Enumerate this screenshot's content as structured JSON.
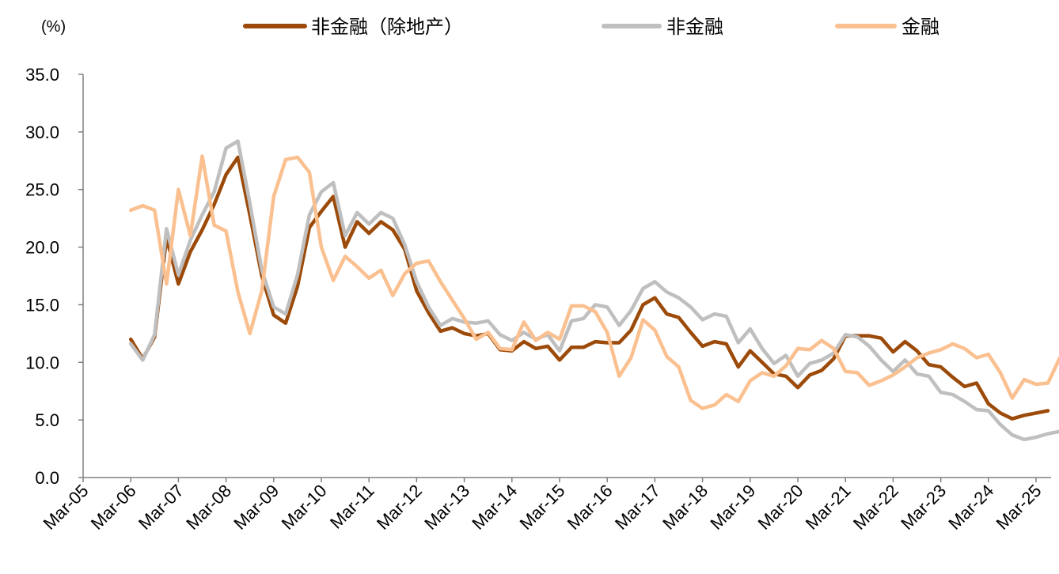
{
  "chart_data": {
    "type": "line",
    "unit_label": "(%)",
    "ylim": [
      0,
      35
    ],
    "y_ticks": [
      "0.0",
      "5.0",
      "10.0",
      "15.0",
      "20.0",
      "25.0",
      "30.0",
      "35.0"
    ],
    "x_tick_labels": [
      "Mar-05",
      "Mar-06",
      "Mar-07",
      "Mar-08",
      "Mar-09",
      "Mar-10",
      "Mar-11",
      "Mar-12",
      "Mar-13",
      "Mar-14",
      "Mar-15",
      "Mar-16",
      "Mar-17",
      "Mar-18",
      "Mar-19",
      "Mar-20",
      "Mar-21",
      "Mar-22",
      "Mar-23",
      "Mar-24",
      "Mar-25"
    ],
    "x_start": "2005Q1",
    "legend_position": "top",
    "series": [
      {
        "name": "非金融（除地产）",
        "color": "#9C4A09",
        "start": "2006Q1",
        "values": [
          12.0,
          10.3,
          12.2,
          20.8,
          16.8,
          19.6,
          21.5,
          23.7,
          26.3,
          27.8,
          22.8,
          17.5,
          14.1,
          13.4,
          16.6,
          21.7,
          23.1,
          24.4,
          20.0,
          22.2,
          21.2,
          22.2,
          21.5,
          19.8,
          16.2,
          14.3,
          12.7,
          13.0,
          12.5,
          12.3,
          12.5,
          11.1,
          11.0,
          11.8,
          11.2,
          11.4,
          10.2,
          11.3,
          11.3,
          11.8,
          11.7,
          11.7,
          12.8,
          15.0,
          15.6,
          14.2,
          13.9,
          12.6,
          11.4,
          11.8,
          11.6,
          9.6,
          11.0,
          10.0,
          9.0,
          8.8,
          7.8,
          8.9,
          9.3,
          10.3,
          12.3,
          12.3,
          12.3,
          12.1,
          10.9,
          11.8,
          11.0,
          9.8,
          9.6,
          8.7,
          7.9,
          8.2,
          6.4,
          5.6,
          5.1,
          5.4,
          5.6,
          5.8
        ]
      },
      {
        "name": "非金融",
        "color": "#BFBFBF",
        "start": "2006Q1",
        "values": [
          11.6,
          10.2,
          12.4,
          21.6,
          17.6,
          20.6,
          22.8,
          24.8,
          28.6,
          29.2,
          23.8,
          18.0,
          14.8,
          14.2,
          17.6,
          22.8,
          24.8,
          25.6,
          21.0,
          23.0,
          22.0,
          23.0,
          22.5,
          20.2,
          17.0,
          14.8,
          13.2,
          13.8,
          13.5,
          13.4,
          13.6,
          12.4,
          11.9,
          12.6,
          12.0,
          12.4,
          11.0,
          13.6,
          13.8,
          15.0,
          14.8,
          13.2,
          14.5,
          16.4,
          17.0,
          16.1,
          15.6,
          14.8,
          13.7,
          14.2,
          14.0,
          11.7,
          12.9,
          11.2,
          9.9,
          10.6,
          8.8,
          9.9,
          10.2,
          10.8,
          12.4,
          12.2,
          11.4,
          10.2,
          9.2,
          10.2,
          9.0,
          8.8,
          7.4,
          7.2,
          6.6,
          5.9,
          5.8,
          4.6,
          3.7,
          3.3,
          3.5,
          3.8,
          4.0
        ]
      },
      {
        "name": "金融",
        "color": "#FAC090",
        "start": "2006Q1",
        "values": [
          23.2,
          23.6,
          23.2,
          16.8,
          25.0,
          21.0,
          27.9,
          21.9,
          21.4,
          16.1,
          12.5,
          16.2,
          24.4,
          27.6,
          27.8,
          26.5,
          20.0,
          17.1,
          19.2,
          18.3,
          17.3,
          18.0,
          15.8,
          17.7,
          18.6,
          18.8,
          17.0,
          15.4,
          13.8,
          12.0,
          12.6,
          11.2,
          11.1,
          13.5,
          11.9,
          12.6,
          12.0,
          14.9,
          14.9,
          14.4,
          12.6,
          8.8,
          10.4,
          13.7,
          12.8,
          10.5,
          9.6,
          6.7,
          6.0,
          6.3,
          7.2,
          6.6,
          8.4,
          9.1,
          8.8,
          9.7,
          11.2,
          11.1,
          11.9,
          11.2,
          9.2,
          9.1,
          8.0,
          8.4,
          8.9,
          9.6,
          10.4,
          10.8,
          11.1,
          11.6,
          11.2,
          10.4,
          10.7,
          9.1,
          6.9,
          8.5,
          8.1,
          8.2,
          10.4
        ]
      }
    ]
  }
}
